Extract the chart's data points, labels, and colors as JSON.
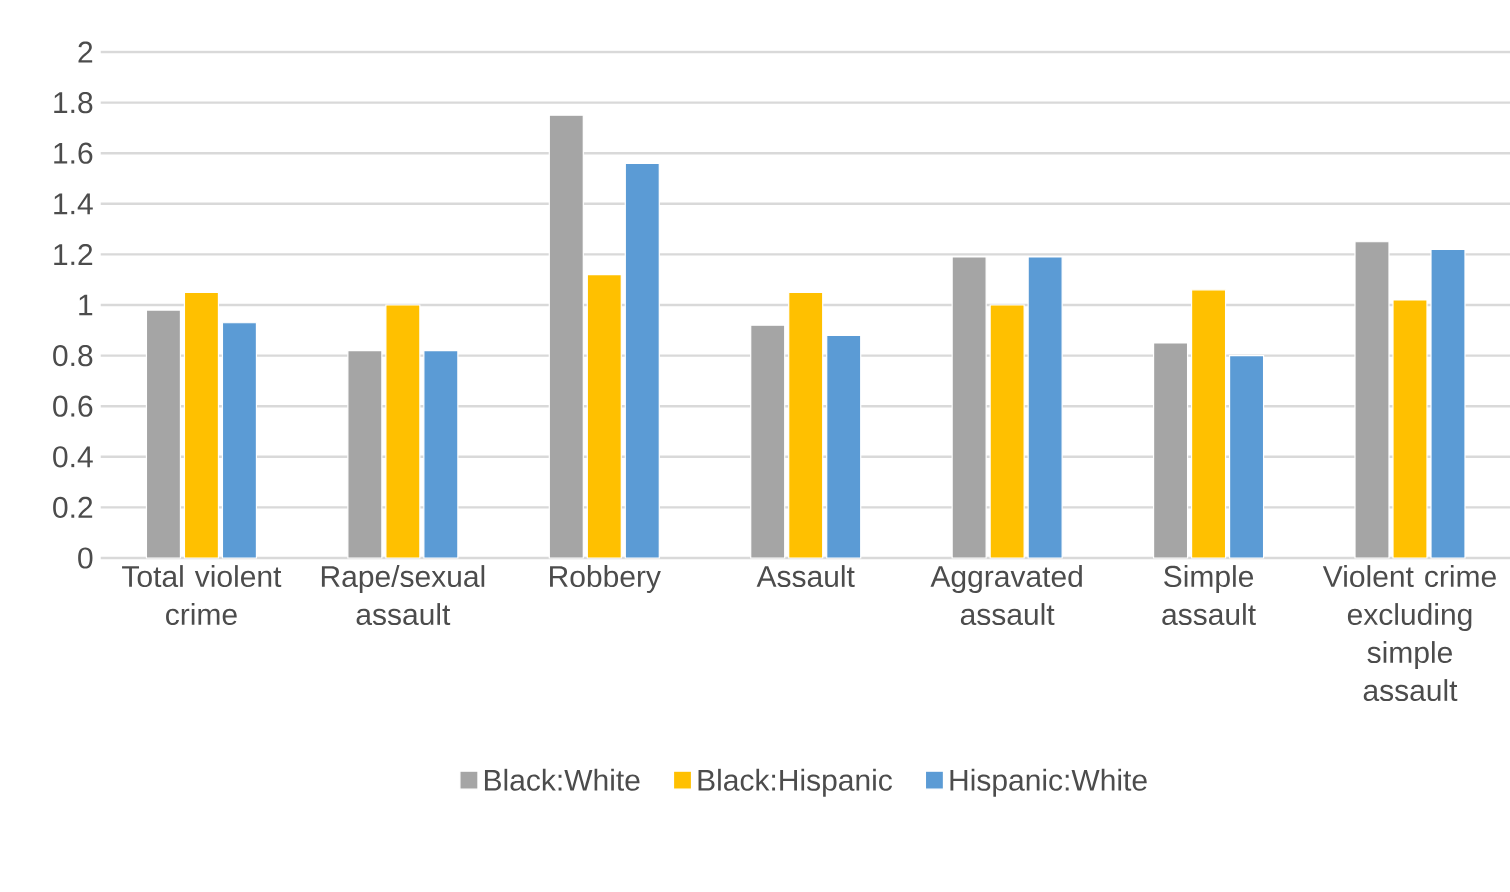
{
  "chart_data": {
    "type": "bar",
    "categories": [
      "Total violent crime",
      "Rape/sexual assault",
      "Robbery",
      "Assault",
      "Aggravated assault",
      "Simple assault",
      "Violent crime excluding simple assault"
    ],
    "series": [
      {
        "name": "Black:White",
        "color": "#a5a5a5",
        "values": [
          0.98,
          0.82,
          1.75,
          0.92,
          1.19,
          0.85,
          1.25
        ]
      },
      {
        "name": "Black:Hispanic",
        "color": "#ffc000",
        "values": [
          1.05,
          1.0,
          1.12,
          1.05,
          1.0,
          1.06,
          1.02
        ]
      },
      {
        "name": "Hispanic:White",
        "color": "#5b9bd5",
        "values": [
          0.93,
          0.82,
          1.56,
          0.88,
          1.19,
          0.8,
          1.22
        ]
      }
    ],
    "ylim": [
      0,
      2
    ],
    "yticks": [
      0,
      0.2,
      0.4,
      0.6,
      0.8,
      1,
      1.2,
      1.4,
      1.6,
      1.8,
      2
    ],
    "grid": "y",
    "legend": "bottom"
  }
}
